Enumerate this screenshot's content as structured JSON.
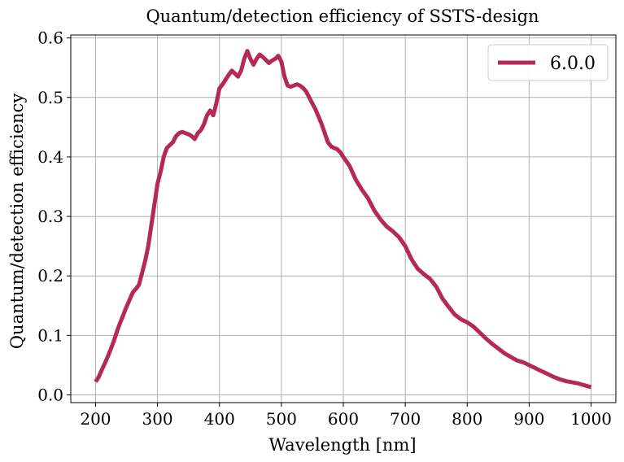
{
  "chart_data": {
    "type": "line",
    "title": "Quantum/detection efficiency of SSTS-design",
    "xlabel": "Wavelength [nm]",
    "ylabel": "Quantum/detection efficiency",
    "xlim": [
      160,
      1040
    ],
    "ylim": [
      -0.013,
      0.605
    ],
    "xticks": [
      200,
      300,
      400,
      500,
      600,
      700,
      800,
      900,
      1000
    ],
    "xtick_labels": [
      "200",
      "300",
      "400",
      "500",
      "600",
      "700",
      "800",
      "900",
      "1000"
    ],
    "yticks": [
      0.0,
      0.1,
      0.2,
      0.3,
      0.4,
      0.5,
      0.6
    ],
    "ytick_labels": [
      "0.0",
      "0.1",
      "0.2",
      "0.3",
      "0.4",
      "0.5",
      "0.6"
    ],
    "grid": true,
    "legend_position": "top-right",
    "series": [
      {
        "name": "6.0.0",
        "color": "#b5295a",
        "x": [
          200,
          205,
          210,
          215,
          220,
          225,
          230,
          235,
          240,
          245,
          250,
          255,
          260,
          265,
          270,
          275,
          280,
          285,
          290,
          295,
          300,
          305,
          310,
          315,
          320,
          325,
          330,
          335,
          340,
          345,
          350,
          355,
          360,
          365,
          370,
          375,
          380,
          385,
          390,
          395,
          400,
          405,
          410,
          415,
          420,
          425,
          430,
          435,
          440,
          445,
          450,
          455,
          460,
          465,
          470,
          475,
          480,
          485,
          490,
          495,
          500,
          505,
          510,
          515,
          520,
          525,
          530,
          535,
          540,
          545,
          550,
          555,
          560,
          565,
          570,
          575,
          580,
          585,
          590,
          595,
          600,
          610,
          620,
          630,
          640,
          650,
          660,
          670,
          680,
          690,
          700,
          710,
          720,
          730,
          740,
          750,
          760,
          770,
          780,
          790,
          800,
          810,
          820,
          830,
          840,
          850,
          860,
          870,
          880,
          890,
          900,
          910,
          920,
          930,
          940,
          950,
          960,
          970,
          980,
          990,
          1000
        ],
        "y": [
          0.022,
          0.03,
          0.042,
          0.053,
          0.065,
          0.078,
          0.092,
          0.108,
          0.122,
          0.135,
          0.148,
          0.16,
          0.172,
          0.178,
          0.185,
          0.205,
          0.225,
          0.25,
          0.285,
          0.32,
          0.355,
          0.375,
          0.4,
          0.415,
          0.42,
          0.425,
          0.435,
          0.44,
          0.442,
          0.44,
          0.438,
          0.435,
          0.43,
          0.44,
          0.445,
          0.455,
          0.47,
          0.478,
          0.47,
          0.49,
          0.515,
          0.522,
          0.53,
          0.538,
          0.545,
          0.54,
          0.535,
          0.545,
          0.565,
          0.578,
          0.565,
          0.555,
          0.565,
          0.572,
          0.568,
          0.563,
          0.558,
          0.562,
          0.565,
          0.57,
          0.56,
          0.535,
          0.52,
          0.518,
          0.52,
          0.522,
          0.52,
          0.516,
          0.51,
          0.5,
          0.49,
          0.48,
          0.468,
          0.455,
          0.44,
          0.425,
          0.418,
          0.415,
          0.413,
          0.408,
          0.4,
          0.385,
          0.362,
          0.345,
          0.33,
          0.31,
          0.295,
          0.283,
          0.275,
          0.265,
          0.25,
          0.228,
          0.212,
          0.203,
          0.195,
          0.182,
          0.162,
          0.148,
          0.135,
          0.127,
          0.122,
          0.115,
          0.105,
          0.095,
          0.086,
          0.078,
          0.07,
          0.064,
          0.058,
          0.055,
          0.05,
          0.045,
          0.04,
          0.035,
          0.03,
          0.026,
          0.023,
          0.021,
          0.019,
          0.016,
          0.013
        ]
      }
    ]
  }
}
